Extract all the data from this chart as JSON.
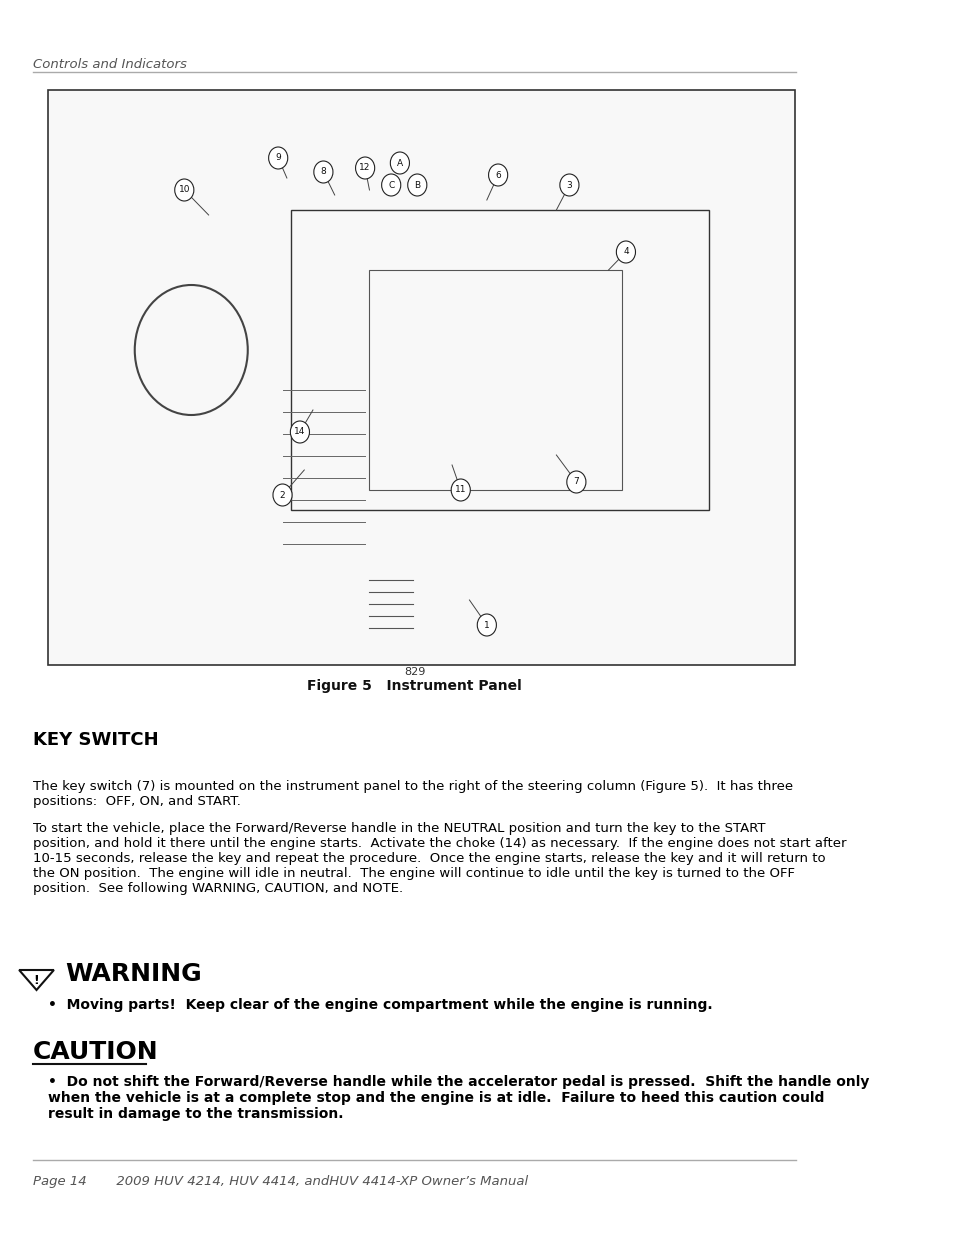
{
  "header_text": "Controls and Indicators",
  "figure_number": "829",
  "figure_caption": "Figure 5   Instrument Panel",
  "section_title": "KEY SWITCH",
  "body_text_1": "The key switch (7) is mounted on the instrument panel to the right of the steering column (Figure 5).  It has three\npositions:  OFF, ON, and START.",
  "body_text_2": "To start the vehicle, place the Forward/Reverse handle in the NEUTRAL position and turn the key to the START\nposition, and hold it there until the engine starts.  Activate the choke (14) as necessary.  If the engine does not start after\n10-15 seconds, release the key and repeat the procedure.  Once the engine starts, release the key and it will return to\nthe ON position.  The engine will idle in neutral.  The engine will continue to idle until the key is turned to the OFF\nposition.  See following WARNING, CAUTION, and NOTE.",
  "warning_title": "WARNING",
  "warning_bullet": "Moving parts!  Keep clear of the engine compartment while the engine is running.",
  "caution_title": "CAUTION",
  "caution_bullet": "Do not shift the Forward/Reverse handle while the accelerator pedal is pressed.  Shift the handle only\nwhen the vehicle is at a complete stop and the engine is at idle.  Failure to heed this caution could\nresult in damage to the transmission.",
  "footer_text": "Page 14       2009 HUV 4214, HUV 4414, andHUV 4414-XP Owner’s Manual",
  "bg_color": "#ffffff",
  "text_color": "#000000",
  "header_color": "#555555",
  "line_color": "#aaaaaa",
  "image_border_color": "#333333"
}
